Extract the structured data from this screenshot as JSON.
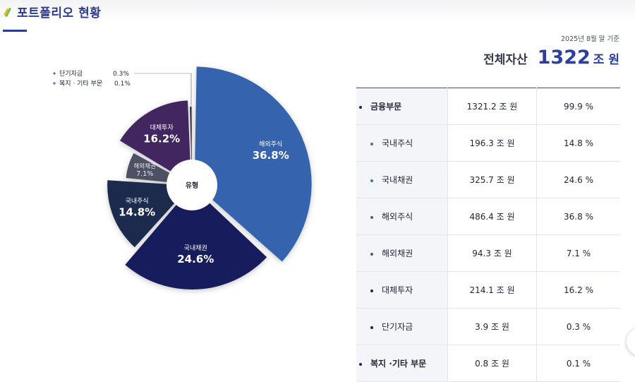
{
  "header": {
    "title": "포트폴리오 현황",
    "logo_icon": "leaf-logo-icon"
  },
  "basis_date": "2025년 8월 말 기준",
  "total": {
    "label": "전체자산",
    "value": "1322",
    "unit": "조 원"
  },
  "chart_data": {
    "type": "pie",
    "center_label": "유형",
    "slices": [
      {
        "label": "해외주식",
        "value": 36.8,
        "color": "#3563ad",
        "text_color": "#ffffff"
      },
      {
        "label": "국내채권",
        "value": 24.6,
        "color": "#181d5c",
        "text_color": "#ffffff"
      },
      {
        "label": "국내주식",
        "value": 14.8,
        "color": "#1f2b4d",
        "text_color": "#ffffff"
      },
      {
        "label": "해외채권",
        "value": 7.1,
        "color": "#4d5163",
        "text_color": "#e8e8ee"
      },
      {
        "label": "대체투자",
        "value": 16.2,
        "color": "#43275f",
        "text_color": "#ffffff"
      },
      {
        "label": "단기자금",
        "value": 0.3,
        "color": "#1c1f2e",
        "text_color": "#ffffff"
      },
      {
        "label": "복지 · 기타 부문",
        "value": 0.1,
        "color": "#9ea3b2",
        "text_color": "#ffffff"
      }
    ],
    "outside_labels": [
      {
        "label": "단기자금",
        "value": "0.3%"
      },
      {
        "label": "복지 · 기타 부문",
        "value": "0.1%"
      }
    ]
  },
  "table": {
    "rows": [
      {
        "name": "금융부문",
        "amount": "1321.2 조 원",
        "percent": "99.9 %",
        "level": "top",
        "bullet_color": "#1c2260"
      },
      {
        "name": "국내주식",
        "amount": "196.3 조 원",
        "percent": "14.8 %",
        "level": "sub",
        "bullet_color": "#3f6fc0"
      },
      {
        "name": "국내채권",
        "amount": "325.7 조 원",
        "percent": "24.6 %",
        "level": "sub",
        "bullet_color": "#3f6fc0"
      },
      {
        "name": "해외주식",
        "amount": "486.4 조 원",
        "percent": "36.8 %",
        "level": "sub",
        "bullet_color": "#555a6b"
      },
      {
        "name": "해외채권",
        "amount": "94.3 조 원",
        "percent": "7.1 %",
        "level": "sub",
        "bullet_color": "#555a6b"
      },
      {
        "name": "대체투자",
        "amount": "214.1 조 원",
        "percent": "16.2 %",
        "level": "sub",
        "bullet_color": "#1c2260"
      },
      {
        "name": "단기자금",
        "amount": "3.9 조 원",
        "percent": "0.3 %",
        "level": "sub",
        "bullet_color": "#1c2260"
      },
      {
        "name": "복지 ·기타 부문",
        "amount": "0.8 조 원",
        "percent": "0.1 %",
        "level": "top",
        "bullet_color": "#1c2260"
      }
    ]
  }
}
